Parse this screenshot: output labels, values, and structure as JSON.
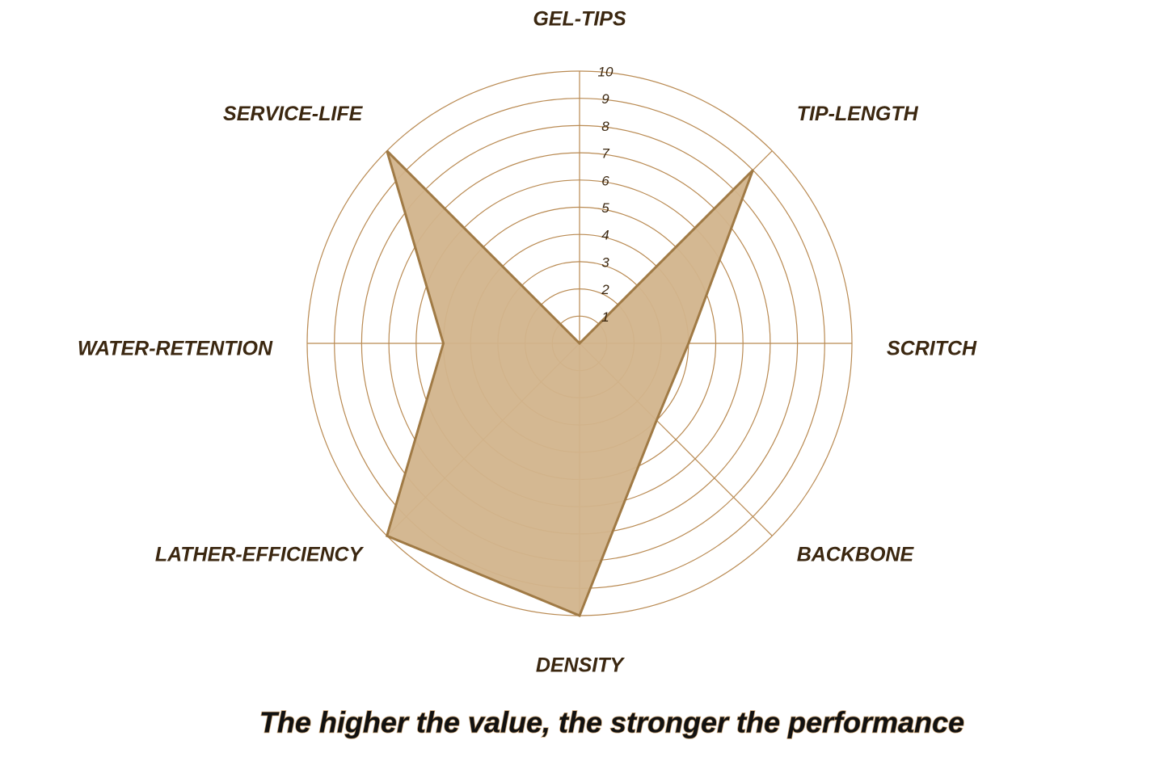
{
  "chart_data": {
    "type": "radar",
    "title": "The higher the value, the stronger the performance",
    "categories": [
      "GEL-TIPS",
      "TIP-LENGTH",
      "SCRITCH",
      "BACKBONE",
      "DENSITY",
      "LATHER-EFFICIENCY",
      "WATER-RETENTION",
      "SERVICE-LIFE"
    ],
    "values": [
      0,
      9,
      4,
      4,
      10,
      10,
      5,
      10
    ],
    "color": "#d2b48c",
    "rlim": [
      0,
      10
    ],
    "rticks": [
      1,
      2,
      3,
      4,
      5,
      6,
      7,
      8,
      9,
      10
    ],
    "grid": true
  }
}
